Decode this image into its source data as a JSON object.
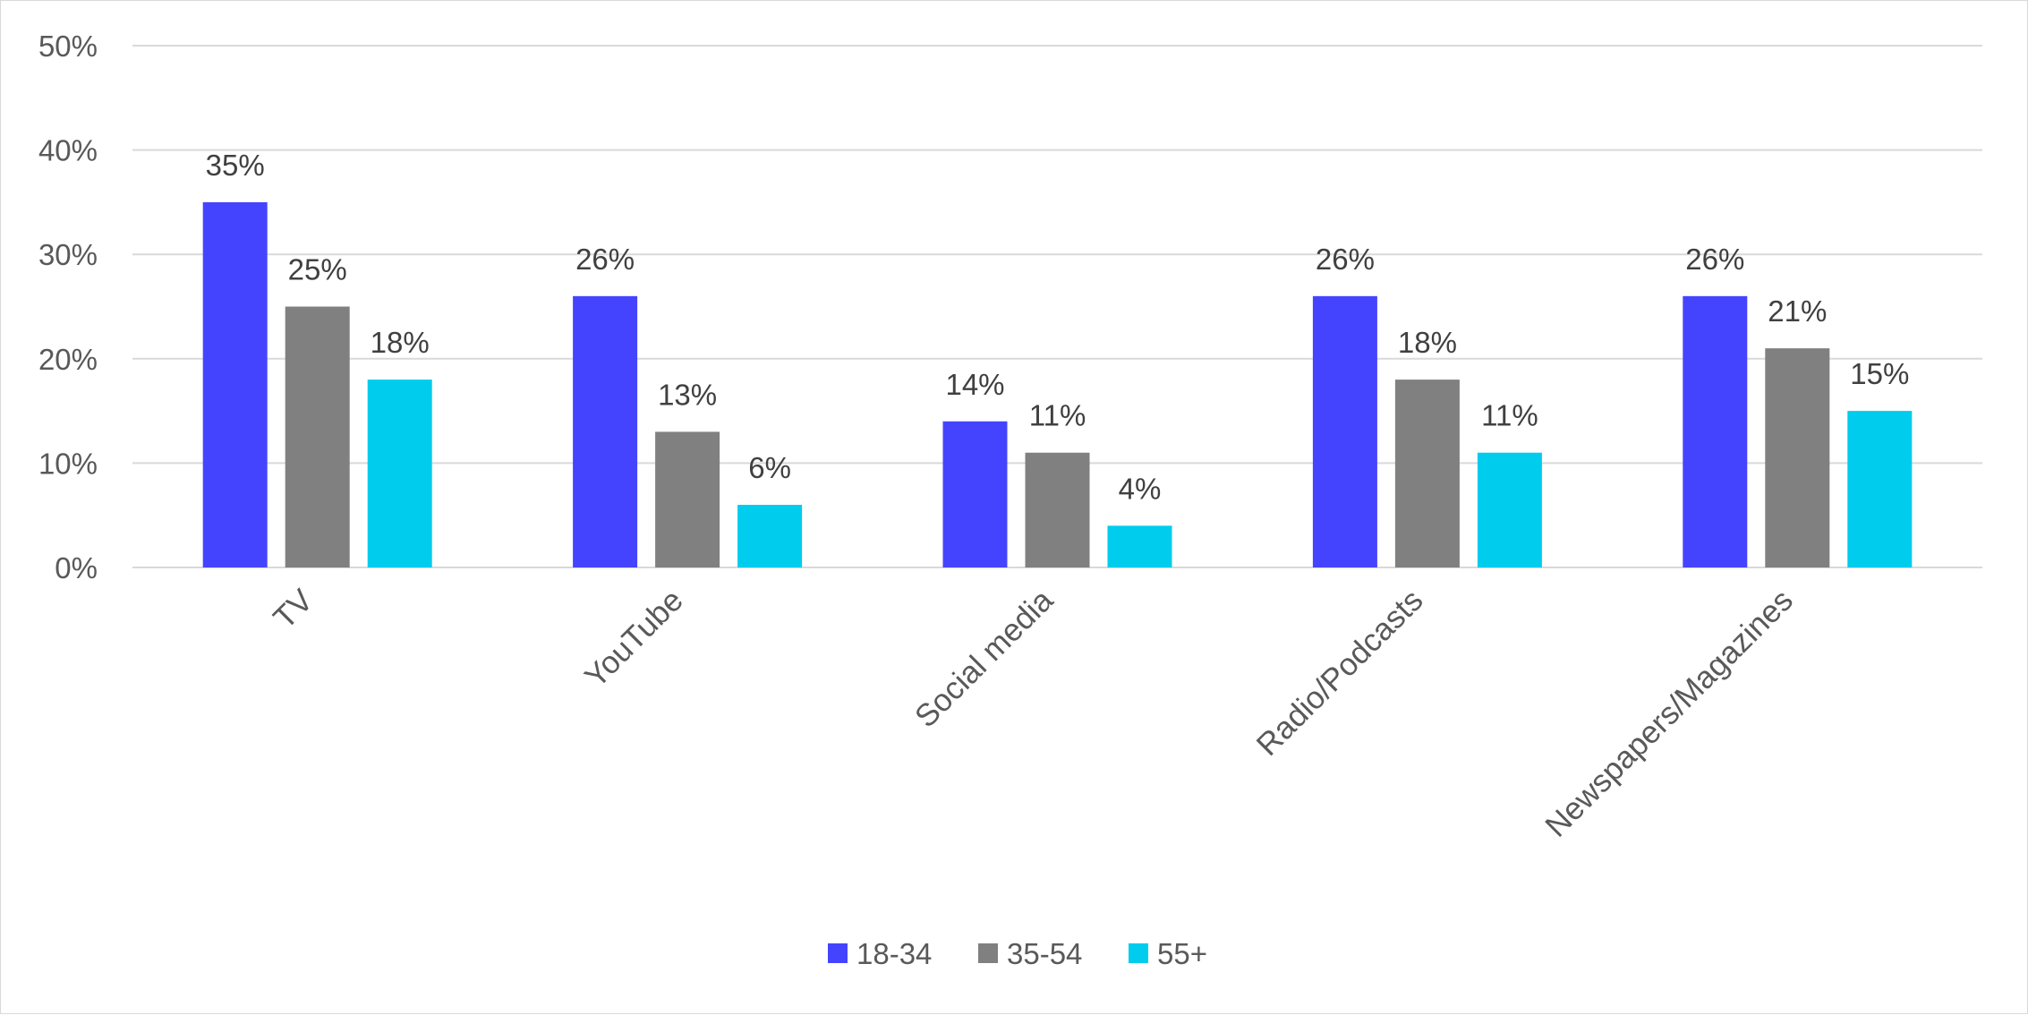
{
  "chart_data": {
    "type": "bar",
    "title": "",
    "xlabel": "",
    "ylabel": "",
    "categories": [
      "TV",
      "YouTube",
      "Social media",
      "Radio/Podcasts",
      "Newspapers/Magazines"
    ],
    "series": [
      {
        "name": "18-34",
        "color": "#4444ff",
        "values": [
          35,
          26,
          14,
          26,
          26
        ]
      },
      {
        "name": "35-54",
        "color": "#808080",
        "values": [
          25,
          13,
          11,
          18,
          21
        ]
      },
      {
        "name": "55+",
        "color": "#00ccee",
        "values": [
          18,
          6,
          4,
          11,
          15
        ]
      }
    ],
    "ylim": [
      0,
      50
    ],
    "yticks": [
      0,
      10,
      20,
      30,
      40,
      50
    ],
    "value_suffix": "%",
    "grid": true,
    "legend_position": "bottom"
  }
}
